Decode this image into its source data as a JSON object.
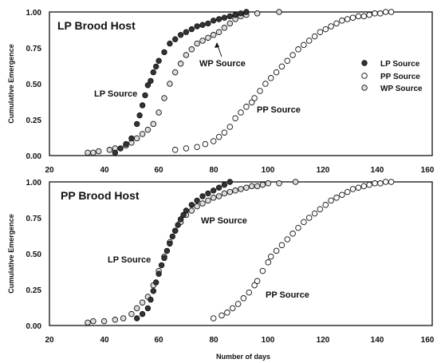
{
  "chart_data": [
    {
      "type": "scatter",
      "title": "LP Brood Host",
      "xlabel": "",
      "ylabel": "Cumulative Emergence",
      "xlim": [
        20,
        160
      ],
      "ylim": [
        0,
        1
      ],
      "xticks": [
        "20",
        "40",
        "60",
        "80",
        "100",
        "120",
        "140",
        "160"
      ],
      "yticks": [
        "0.00",
        "0.25",
        "0.50",
        "0.75",
        "1.00"
      ],
      "grid": false,
      "legend": {
        "placement": "right",
        "entries": [
          "LP Source",
          "PP Source",
          "WP Source"
        ]
      },
      "annotations": [
        "LP Source",
        "WP Source",
        "PP Source"
      ],
      "series": [
        {
          "name": "LP Source",
          "marker": "filled",
          "x": [
            44,
            46,
            48,
            50,
            52,
            53,
            54,
            55,
            56,
            57,
            58,
            59,
            60,
            62,
            64,
            66,
            68,
            70,
            72,
            74,
            76,
            78,
            80,
            82,
            84,
            86,
            88,
            90,
            92
          ],
          "y": [
            0.02,
            0.05,
            0.08,
            0.12,
            0.22,
            0.28,
            0.35,
            0.42,
            0.49,
            0.52,
            0.58,
            0.62,
            0.66,
            0.72,
            0.78,
            0.81,
            0.84,
            0.86,
            0.88,
            0.9,
            0.91,
            0.92,
            0.94,
            0.95,
            0.96,
            0.97,
            0.98,
            0.99,
            1.0
          ]
        },
        {
          "name": "PP Source",
          "marker": "open",
          "x": [
            66,
            70,
            74,
            77,
            80,
            82,
            84,
            86,
            88,
            90,
            92,
            94,
            95,
            97,
            99,
            101,
            103,
            105,
            107,
            109,
            111,
            113,
            115,
            117,
            119,
            121,
            123,
            125,
            127,
            129,
            131,
            133,
            135,
            137,
            139,
            141,
            143,
            145
          ],
          "y": [
            0.04,
            0.05,
            0.06,
            0.08,
            0.1,
            0.13,
            0.16,
            0.2,
            0.26,
            0.3,
            0.34,
            0.37,
            0.4,
            0.45,
            0.5,
            0.54,
            0.58,
            0.62,
            0.66,
            0.7,
            0.74,
            0.77,
            0.8,
            0.83,
            0.86,
            0.88,
            0.9,
            0.92,
            0.94,
            0.95,
            0.96,
            0.97,
            0.97,
            0.98,
            0.99,
            0.99,
            1.0,
            1.0
          ]
        },
        {
          "name": "WP Source",
          "marker": "open",
          "x": [
            34,
            36,
            38,
            42,
            44,
            48,
            50,
            52,
            54,
            56,
            58,
            60,
            62,
            64,
            66,
            68,
            70,
            72,
            74,
            76,
            78,
            80,
            82,
            84,
            86,
            88,
            90,
            92,
            96,
            104
          ],
          "y": [
            0.02,
            0.02,
            0.03,
            0.04,
            0.05,
            0.07,
            0.09,
            0.12,
            0.15,
            0.18,
            0.22,
            0.3,
            0.4,
            0.5,
            0.58,
            0.64,
            0.7,
            0.74,
            0.78,
            0.8,
            0.82,
            0.84,
            0.86,
            0.89,
            0.92,
            0.95,
            0.97,
            0.98,
            0.99,
            1.0
          ]
        }
      ]
    },
    {
      "type": "scatter",
      "title": "PP Brood Host",
      "xlabel": "Number of days",
      "ylabel": "Cumulative Emergence",
      "xlim": [
        20,
        160
      ],
      "ylim": [
        0,
        1
      ],
      "xticks": [
        "20",
        "40",
        "60",
        "80",
        "100",
        "120",
        "140",
        "160"
      ],
      "yticks": [
        "0.00",
        "0.25",
        "0.50",
        "0.75",
        "1.00"
      ],
      "grid": false,
      "annotations": [
        "WP Source",
        "LP Source",
        "PP Source"
      ],
      "series": [
        {
          "name": "LP Source",
          "marker": "filled",
          "x": [
            52,
            54,
            56,
            57,
            58,
            59,
            60,
            61,
            62,
            63,
            64,
            65,
            66,
            67,
            68,
            69,
            70,
            72,
            74,
            76,
            78,
            80,
            82,
            84,
            86
          ],
          "y": [
            0.05,
            0.08,
            0.12,
            0.18,
            0.24,
            0.3,
            0.36,
            0.42,
            0.47,
            0.52,
            0.57,
            0.62,
            0.66,
            0.7,
            0.74,
            0.77,
            0.8,
            0.84,
            0.87,
            0.9,
            0.92,
            0.94,
            0.96,
            0.98,
            1.0
          ]
        },
        {
          "name": "PP Source",
          "marker": "open",
          "x": [
            80,
            83,
            85,
            87,
            89,
            91,
            93,
            95,
            96,
            98,
            100,
            101,
            103,
            105,
            107,
            109,
            111,
            113,
            115,
            117,
            119,
            121,
            123,
            125,
            127,
            129,
            131,
            133,
            135,
            137,
            139,
            141,
            143,
            145
          ],
          "y": [
            0.05,
            0.07,
            0.09,
            0.12,
            0.15,
            0.19,
            0.23,
            0.28,
            0.31,
            0.38,
            0.44,
            0.48,
            0.52,
            0.56,
            0.6,
            0.64,
            0.68,
            0.72,
            0.75,
            0.78,
            0.81,
            0.84,
            0.87,
            0.89,
            0.91,
            0.93,
            0.95,
            0.96,
            0.97,
            0.98,
            0.99,
            0.99,
            1.0,
            1.0
          ]
        },
        {
          "name": "WP Source",
          "marker": "open",
          "x": [
            34,
            36,
            40,
            44,
            47,
            50,
            52,
            54,
            56,
            58,
            60,
            62,
            64,
            66,
            68,
            70,
            72,
            74,
            76,
            78,
            80,
            82,
            84,
            86,
            88,
            90,
            92,
            94,
            96,
            98,
            100,
            104,
            110
          ],
          "y": [
            0.02,
            0.03,
            0.03,
            0.04,
            0.05,
            0.08,
            0.12,
            0.16,
            0.2,
            0.28,
            0.38,
            0.48,
            0.58,
            0.66,
            0.72,
            0.77,
            0.8,
            0.83,
            0.85,
            0.87,
            0.89,
            0.9,
            0.92,
            0.93,
            0.94,
            0.95,
            0.96,
            0.97,
            0.97,
            0.98,
            0.99,
            0.99,
            1.0
          ]
        }
      ]
    }
  ]
}
